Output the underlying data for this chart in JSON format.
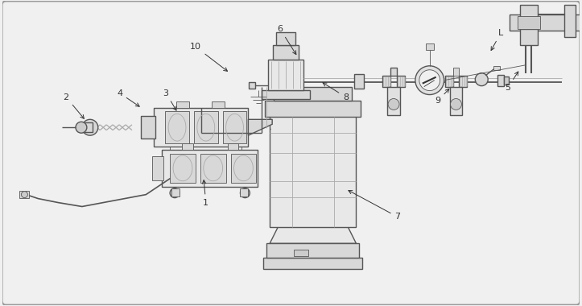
{
  "bg_color": "#f0f0f0",
  "border_color": "#999999",
  "line_color": "#555555",
  "dark_color": "#333333",
  "light_gray": "#e0e0e0",
  "mid_gray": "#aaaaaa",
  "fill1": "#e8e8e8",
  "fill2": "#d8d8d8",
  "fill3": "#cccccc",
  "figsize": [
    7.23,
    3.8
  ],
  "dpi": 100
}
